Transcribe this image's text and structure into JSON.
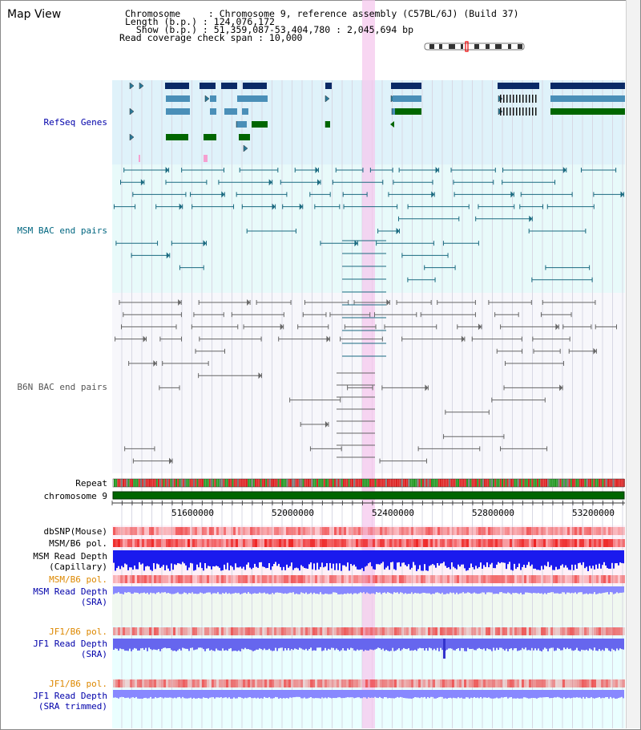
{
  "header": {
    "title": "Map View",
    "info_lines": [
      "Chromosome     : Chromosome 9, reference assembly (C57BL/6J) (Build 37)",
      "Length (b.p.) : 124,076,172",
      "  Show (b.p.) : 51,359,087-53,404,780 : 2,045,694 bp",
      "Read coverage check span : 10,000"
    ]
  },
  "tracks": {
    "refseq": {
      "label": "RefSeq Genes",
      "color": "#0000aa"
    },
    "msm_bac": {
      "label": "MSM BAC end pairs",
      "color": "#006680"
    },
    "b6n_bac": {
      "label": "B6N BAC end pairs",
      "color": "#555555"
    },
    "repeat": {
      "label": "Repeat"
    },
    "chromosome": {
      "label": "chromosome 9"
    },
    "dbsnp": {
      "label": "dbSNP(Mouse)"
    },
    "msm_b6_pol": {
      "label": "MSM/B6 pol."
    },
    "msm_read_depth_cap": {
      "label1": "MSM Read Depth",
      "label2": "(Capillary)"
    },
    "msm_b6_pol_sra": {
      "label": "MSM/B6 pol."
    },
    "msm_read_depth_sra": {
      "label1": "MSM Read Depth",
      "label2": "(SRA)"
    },
    "jf1_b6_pol": {
      "label": "JF1/B6 pol."
    },
    "jf1_read_depth": {
      "label1": "JF1 Read Depth",
      "label2": "(SRA)"
    },
    "jf1_b6_pol_trim": {
      "label": "JF1/B6 pol."
    },
    "jf1_read_depth_trim": {
      "label1": "JF1 Read Depth",
      "label2": "(SRA trimmed)"
    }
  },
  "axis": {
    "ticks": [
      "51600000",
      "52000000",
      "52400000",
      "52800000",
      "53200000"
    ]
  },
  "colors": {
    "dark_blue": "#0a2a66",
    "mid_blue": "#4a8fb8",
    "green": "#006600",
    "teal": "#1a6a80",
    "grey_line": "#666666",
    "highlight": "#f5c8ee",
    "depth_blue": "#1a1aee",
    "depth_light": "#8888ff",
    "pol_red": "#ee3333"
  }
}
